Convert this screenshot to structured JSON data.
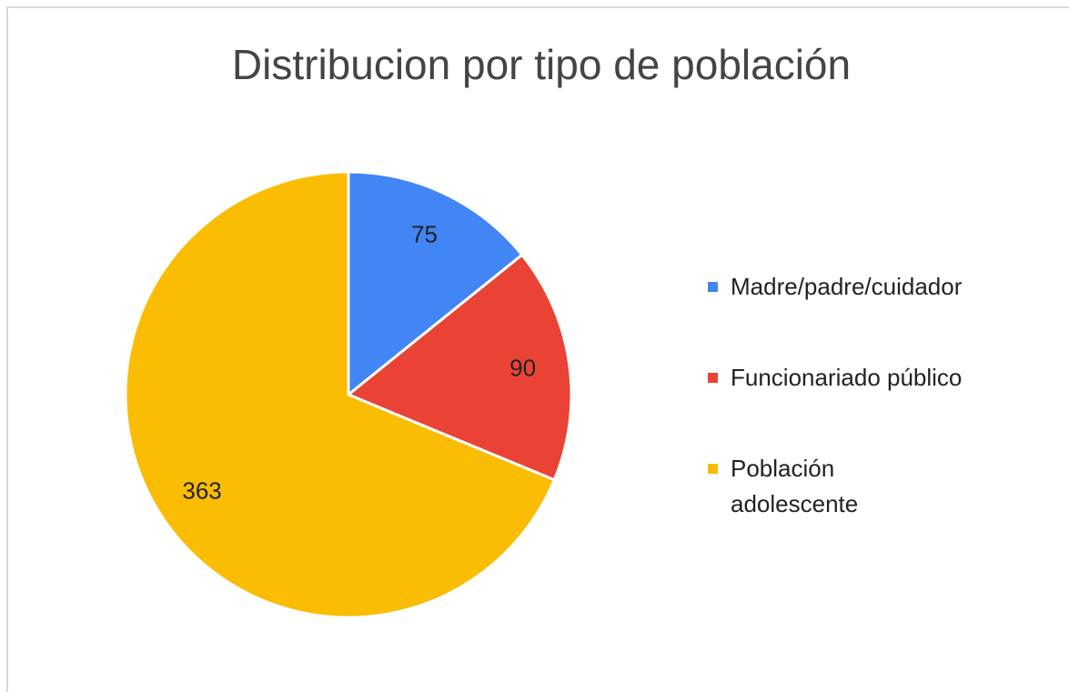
{
  "chart_data": {
    "type": "pie",
    "title": "Distribucion por tipo de población",
    "categories": [
      "Madre/padre/cuidador",
      "Funcionariado público",
      "Población adolescente"
    ],
    "values": [
      75,
      90,
      363
    ],
    "colors": [
      "#4285f4",
      "#ea4335",
      "#fbbc04"
    ],
    "legend": "right"
  }
}
